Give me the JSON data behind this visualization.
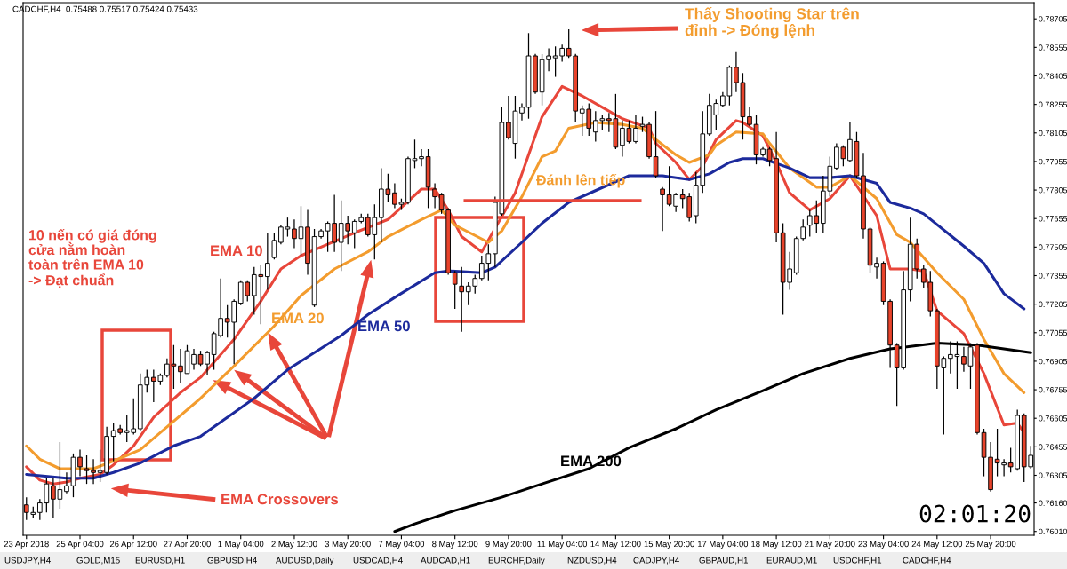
{
  "chart_data": {
    "type": "candlestick",
    "title": "CADCHF,H4  0.75488 0.75517 0.75424 0.75433",
    "categories": [
      "23 Apr 2018",
      null,
      null,
      null,
      null,
      null,
      null,
      null,
      "25 Apr 04:00",
      null,
      null,
      null,
      null,
      null,
      null,
      null,
      "26 Apr 12:00",
      null,
      null,
      null,
      null,
      null,
      null,
      null,
      "27 Apr 20:00",
      null,
      null,
      null,
      null,
      null,
      null,
      null,
      "1 May 04:00",
      null,
      null,
      null,
      null,
      null,
      null,
      null,
      "2 May 12:00",
      null,
      null,
      null,
      null,
      null,
      null,
      null,
      "3 May 20:00",
      null,
      null,
      null,
      null,
      null,
      null,
      null,
      "7 May 04:00",
      null,
      null,
      null,
      null,
      null,
      null,
      null,
      "8 May 12:00",
      null,
      null,
      null,
      null,
      null,
      null,
      null,
      "9 May 20:00",
      null,
      null,
      null,
      null,
      null,
      null,
      null,
      "11 May 04:00",
      null,
      null,
      null,
      null,
      null,
      null,
      null,
      "14 May 12:00",
      null,
      null,
      null,
      null,
      null,
      null,
      null,
      "15 May 20:00",
      null,
      null,
      null,
      null,
      null,
      null,
      null,
      "17 May 04:00",
      null,
      null,
      null,
      null,
      null,
      null,
      null,
      "18 May 12:00",
      null,
      null,
      null,
      null,
      null,
      null,
      null,
      "21 May 20:00",
      null,
      null,
      null,
      null,
      null,
      null,
      null,
      "23 May 04:00",
      null,
      null,
      null,
      null,
      null,
      null,
      null,
      "24 May 12:00",
      null,
      null,
      null,
      null,
      null,
      null,
      null,
      "25 May 20:00",
      null,
      null,
      null,
      null,
      null,
      null
    ],
    "ohlc": [
      [
        0.7615,
        0.7619,
        0.7607,
        0.7611
      ],
      [
        0.761,
        0.7614,
        0.7608,
        0.7611
      ],
      [
        0.7611,
        0.7618,
        0.7607,
        0.7616
      ],
      [
        0.7616,
        0.7629,
        0.7611,
        0.7626
      ],
      [
        0.7625,
        0.7629,
        0.7608,
        0.7618
      ],
      [
        0.7618,
        0.7648,
        0.7613,
        0.7623
      ],
      [
        0.7622,
        0.7632,
        0.7621,
        0.7625
      ],
      [
        0.7625,
        0.7642,
        0.7619,
        0.764
      ],
      [
        0.764,
        0.7644,
        0.763,
        0.7635
      ],
      [
        0.7634,
        0.7641,
        0.7626,
        0.7633
      ],
      [
        0.7633,
        0.7639,
        0.7626,
        0.7632
      ],
      [
        0.7632,
        0.7644,
        0.7627,
        0.7633
      ],
      [
        0.7632,
        0.7656,
        0.7631,
        0.7651
      ],
      [
        0.7651,
        0.7658,
        0.7638,
        0.7654
      ],
      [
        0.7655,
        0.7657,
        0.7652,
        0.7653
      ],
      [
        0.7653,
        0.7662,
        0.7648,
        0.7654
      ],
      [
        0.7653,
        0.7671,
        0.7652,
        0.7655
      ],
      [
        0.7655,
        0.7684,
        0.7654,
        0.7678
      ],
      [
        0.7678,
        0.7686,
        0.7674,
        0.7682
      ],
      [
        0.7682,
        0.7686,
        0.7669,
        0.768
      ],
      [
        0.768,
        0.7684,
        0.7678,
        0.7683
      ],
      [
        0.7683,
        0.7692,
        0.7682,
        0.7689
      ],
      [
        0.7689,
        0.7699,
        0.7676,
        0.7688
      ],
      [
        0.7688,
        0.7697,
        0.7679,
        0.7685
      ],
      [
        0.7684,
        0.7699,
        0.7684,
        0.7696
      ],
      [
        0.7689,
        0.7697,
        0.7686,
        0.7694
      ],
      [
        0.7694,
        0.7696,
        0.7688,
        0.7689
      ],
      [
        0.7689,
        0.7696,
        0.7683,
        0.7695
      ],
      [
        0.7694,
        0.7706,
        0.7686,
        0.7705
      ],
      [
        0.7704,
        0.7734,
        0.7703,
        0.7713
      ],
      [
        0.7713,
        0.772,
        0.7703,
        0.7711
      ],
      [
        0.7711,
        0.7723,
        0.7689,
        0.7722
      ],
      [
        0.7721,
        0.7733,
        0.772,
        0.7732
      ],
      [
        0.7732,
        0.7733,
        0.7722,
        0.7725
      ],
      [
        0.7725,
        0.774,
        0.7715,
        0.7736
      ],
      [
        0.7736,
        0.7741,
        0.771,
        0.7735
      ],
      [
        0.7735,
        0.7758,
        0.7728,
        0.7742
      ],
      [
        0.7745,
        0.7758,
        0.7744,
        0.7754
      ],
      [
        0.7753,
        0.7762,
        0.7752,
        0.7761
      ],
      [
        0.776,
        0.7766,
        0.7756,
        0.7761
      ],
      [
        0.776,
        0.7765,
        0.775,
        0.7755
      ],
      [
        0.7755,
        0.7772,
        0.7746,
        0.7761
      ],
      [
        0.7761,
        0.777,
        0.7736,
        0.7742
      ],
      [
        0.772,
        0.776,
        0.7719,
        0.7756
      ],
      [
        0.7756,
        0.776,
        0.7755,
        0.7759
      ],
      [
        0.7759,
        0.7764,
        0.7748,
        0.7763
      ],
      [
        0.7763,
        0.7778,
        0.7748,
        0.7753
      ],
      [
        0.7753,
        0.7775,
        0.7738,
        0.7763
      ],
      [
        0.7763,
        0.7767,
        0.7752,
        0.7759
      ],
      [
        0.7758,
        0.7765,
        0.775,
        0.7764
      ],
      [
        0.7764,
        0.7768,
        0.7763,
        0.7766
      ],
      [
        0.7766,
        0.7768,
        0.7756,
        0.7757
      ],
      [
        0.7757,
        0.7773,
        0.7744,
        0.7766
      ],
      [
        0.7766,
        0.7792,
        0.7753,
        0.7781
      ],
      [
        0.7781,
        0.7789,
        0.7774,
        0.7778
      ],
      [
        0.7779,
        0.7784,
        0.7771,
        0.7773
      ],
      [
        0.7773,
        0.7776,
        0.777,
        0.7774
      ],
      [
        0.7774,
        0.7798,
        0.7773,
        0.7797
      ],
      [
        0.7796,
        0.7807,
        0.7792,
        0.7797
      ],
      [
        0.7797,
        0.7802,
        0.7793,
        0.7798
      ],
      [
        0.7798,
        0.7802,
        0.7771,
        0.7782
      ],
      [
        0.7781,
        0.7784,
        0.7771,
        0.7777
      ],
      [
        0.7778,
        0.7779,
        0.7768,
        0.777
      ],
      [
        0.777,
        0.7771,
        0.7736,
        0.7737
      ],
      [
        0.7737,
        0.7738,
        0.7718,
        0.7731
      ],
      [
        0.773,
        0.774,
        0.7706,
        0.7727
      ],
      [
        0.7727,
        0.7732,
        0.772,
        0.773
      ],
      [
        0.773,
        0.7736,
        0.7726,
        0.7734
      ],
      [
        0.7734,
        0.7746,
        0.7733,
        0.7742
      ],
      [
        0.7742,
        0.7752,
        0.7733,
        0.7747
      ],
      [
        0.7747,
        0.7777,
        0.774,
        0.7774
      ],
      [
        0.7768,
        0.7824,
        0.7767,
        0.7816
      ],
      [
        0.7816,
        0.783,
        0.7807,
        0.7808
      ],
      [
        0.7805,
        0.783,
        0.7797,
        0.7822
      ],
      [
        0.7821,
        0.7826,
        0.7817,
        0.7824
      ],
      [
        0.7824,
        0.7863,
        0.7818,
        0.7851
      ],
      [
        0.7851,
        0.7852,
        0.7831,
        0.7832
      ],
      [
        0.7832,
        0.7852,
        0.7825,
        0.7849
      ],
      [
        0.7849,
        0.7855,
        0.7843,
        0.7851
      ],
      [
        0.785,
        0.7856,
        0.784,
        0.7851
      ],
      [
        0.7851,
        0.7857,
        0.7848,
        0.7855
      ],
      [
        0.7855,
        0.7865,
        0.785,
        0.7851
      ],
      [
        0.7851,
        0.7852,
        0.7816,
        0.7822
      ],
      [
        0.7821,
        0.7825,
        0.7809,
        0.7823
      ],
      [
        0.7823,
        0.7826,
        0.7809,
        0.7813
      ],
      [
        0.7811,
        0.7822,
        0.7806,
        0.7817
      ],
      [
        0.7817,
        0.782,
        0.7812,
        0.7818
      ],
      [
        0.7818,
        0.7821,
        0.7811,
        0.7817
      ],
      [
        0.7818,
        0.7831,
        0.7802,
        0.7803
      ],
      [
        0.7804,
        0.7817,
        0.7798,
        0.7813
      ],
      [
        0.7813,
        0.7817,
        0.7805,
        0.7806
      ],
      [
        0.7806,
        0.782,
        0.7805,
        0.7813
      ],
      [
        0.7814,
        0.7819,
        0.7811,
        0.7815
      ],
      [
        0.7815,
        0.7816,
        0.7797,
        0.7798
      ],
      [
        0.7798,
        0.7822,
        0.7787,
        0.7788
      ],
      [
        0.7781,
        0.7782,
        0.7759,
        0.7778
      ],
      [
        0.7778,
        0.7793,
        0.7772,
        0.7773
      ],
      [
        0.7772,
        0.7779,
        0.7769,
        0.7778
      ],
      [
        0.7778,
        0.7781,
        0.7771,
        0.7776
      ],
      [
        0.7777,
        0.7779,
        0.7764,
        0.7766
      ],
      [
        0.7767,
        0.779,
        0.7763,
        0.7783
      ],
      [
        0.7783,
        0.7822,
        0.7779,
        0.781
      ],
      [
        0.781,
        0.7831,
        0.7809,
        0.7825
      ],
      [
        0.782,
        0.7828,
        0.7812,
        0.7826
      ],
      [
        0.7825,
        0.7832,
        0.7824,
        0.783
      ],
      [
        0.783,
        0.7846,
        0.7825,
        0.7845
      ],
      [
        0.7845,
        0.7853,
        0.7832,
        0.7837
      ],
      [
        0.7837,
        0.7842,
        0.7807,
        0.7819
      ],
      [
        0.7819,
        0.7824,
        0.7814,
        0.7815
      ],
      [
        0.7815,
        0.782,
        0.7794,
        0.7799
      ],
      [
        0.7799,
        0.7803,
        0.7798,
        0.7802
      ],
      [
        0.7802,
        0.7803,
        0.7793,
        0.7796
      ],
      [
        0.7797,
        0.7811,
        0.7753,
        0.7758
      ],
      [
        0.7758,
        0.7763,
        0.7715,
        0.7732
      ],
      [
        0.7732,
        0.7748,
        0.7728,
        0.7739
      ],
      [
        0.7737,
        0.7756,
        0.7736,
        0.7755
      ],
      [
        0.7755,
        0.7765,
        0.7754,
        0.7761
      ],
      [
        0.7762,
        0.777,
        0.7756,
        0.7767
      ],
      [
        0.7767,
        0.7775,
        0.7758,
        0.7763
      ],
      [
        0.7763,
        0.7788,
        0.7758,
        0.778
      ],
      [
        0.778,
        0.7798,
        0.7777,
        0.7793
      ],
      [
        0.7792,
        0.7805,
        0.7791,
        0.7803
      ],
      [
        0.7803,
        0.7804,
        0.7793,
        0.7797
      ],
      [
        0.7796,
        0.7816,
        0.7795,
        0.7807
      ],
      [
        0.7806,
        0.7811,
        0.7787,
        0.7788
      ],
      [
        0.7788,
        0.78,
        0.7755,
        0.776
      ],
      [
        0.776,
        0.7761,
        0.7737,
        0.7741
      ],
      [
        0.774,
        0.7745,
        0.7734,
        0.7742
      ],
      [
        0.7742,
        0.7743,
        0.772,
        0.7722
      ],
      [
        0.7722,
        0.7723,
        0.7687,
        0.7699
      ],
      [
        0.7699,
        0.77,
        0.7667,
        0.7687
      ],
      [
        0.7687,
        0.7738,
        0.7686,
        0.7728
      ],
      [
        0.7728,
        0.7766,
        0.7722,
        0.7752
      ],
      [
        0.7752,
        0.7755,
        0.7734,
        0.7739
      ],
      [
        0.7739,
        0.7741,
        0.7729,
        0.7732
      ],
      [
        0.7732,
        0.7738,
        0.7714,
        0.7717
      ],
      [
        0.7717,
        0.7718,
        0.7676,
        0.7688
      ],
      [
        0.7687,
        0.7693,
        0.7652,
        0.7692
      ],
      [
        0.7692,
        0.7701,
        0.7684,
        0.7694
      ],
      [
        0.7693,
        0.7701,
        0.7676,
        0.7694
      ],
      [
        0.7693,
        0.7698,
        0.7685,
        0.7689
      ],
      [
        0.7688,
        0.77,
        0.7676,
        0.7698
      ],
      [
        0.7699,
        0.77,
        0.7652,
        0.7653
      ],
      [
        0.7653,
        0.7655,
        0.763,
        0.764
      ],
      [
        0.764,
        0.7648,
        0.7622,
        0.7623
      ],
      [
        0.7639,
        0.7655,
        0.763,
        0.7637
      ],
      [
        0.7636,
        0.7639,
        0.763,
        0.7637
      ],
      [
        0.7637,
        0.7645,
        0.7632,
        0.7635
      ],
      [
        0.7634,
        0.7665,
        0.7633,
        0.7662
      ],
      [
        0.7662,
        0.7663,
        0.7627,
        0.7635
      ],
      [
        0.7635,
        0.7646,
        0.7634,
        0.7641
      ]
    ],
    "colors": [
      "#e8432b",
      "#ffffff",
      "#ffffff",
      "#ffffff",
      "#e8432b",
      "#ffffff",
      "#ffffff",
      "#ffffff",
      "#e8432b",
      "#e8432b",
      "#e8432b",
      "#ffffff",
      "#ffffff",
      "#ffffff",
      "#e8432b",
      "#ffffff",
      "#ffffff",
      "#ffffff",
      "#ffffff",
      "#e8432b",
      "#ffffff",
      "#ffffff",
      "#e8432b",
      "#e8432b",
      "#ffffff",
      "#ffffff",
      "#e8432b",
      "#ffffff",
      "#ffffff",
      "#ffffff",
      "#e8432b",
      "#ffffff",
      "#ffffff",
      "#e8432b",
      "#ffffff",
      "#e8432b",
      "#ffffff",
      "#ffffff",
      "#ffffff",
      "#ffffff",
      "#e8432b",
      "#ffffff",
      "#e8432b",
      "#ffffff",
      "#ffffff",
      "#ffffff",
      "#e8432b",
      "#ffffff",
      "#e8432b",
      "#ffffff",
      "#ffffff",
      "#e8432b",
      "#ffffff",
      "#ffffff",
      "#e8432b",
      "#e8432b",
      "#ffffff",
      "#ffffff",
      "#ffffff",
      "#ffffff",
      "#e8432b",
      "#e8432b",
      "#e8432b",
      "#e8432b",
      "#e8432b",
      "#e8432b",
      "#ffffff",
      "#ffffff",
      "#ffffff",
      "#ffffff",
      "#ffffff",
      "#ffffff",
      "#e8432b",
      "#ffffff",
      "#ffffff",
      "#ffffff",
      "#e8432b",
      "#ffffff",
      "#ffffff",
      "#ffffff",
      "#ffffff",
      "#e8432b",
      "#e8432b",
      "#ffffff",
      "#e8432b",
      "#ffffff",
      "#ffffff",
      "#e8432b",
      "#e8432b",
      "#ffffff",
      "#e8432b",
      "#ffffff",
      "#ffffff",
      "#e8432b",
      "#e8432b",
      "#e8432b",
      "#e8432b",
      "#ffffff",
      "#e8432b",
      "#e8432b",
      "#ffffff",
      "#ffffff",
      "#ffffff",
      "#ffffff",
      "#ffffff",
      "#ffffff",
      "#e8432b",
      "#e8432b",
      "#e8432b",
      "#e8432b",
      "#ffffff",
      "#e8432b",
      "#e8432b",
      "#e8432b",
      "#ffffff",
      "#ffffff",
      "#ffffff",
      "#ffffff",
      "#e8432b",
      "#ffffff",
      "#ffffff",
      "#ffffff",
      "#e8432b",
      "#ffffff",
      "#e8432b",
      "#e8432b",
      "#e8432b",
      "#ffffff",
      "#e8432b",
      "#e8432b",
      "#e8432b",
      "#ffffff",
      "#ffffff",
      "#e8432b",
      "#e8432b",
      "#e8432b",
      "#e8432b",
      "#ffffff",
      "#ffffff",
      "#ffffff",
      "#e8432b",
      "#ffffff",
      "#e8432b",
      "#e8432b",
      "#e8432b",
      "#e8432b",
      "#ffffff",
      "#e8432b",
      "#ffffff",
      "#e8432b",
      "#ffffff"
    ],
    "series": [
      {
        "name": "EMA 10",
        "type": "line",
        "color": "#e8463a",
        "values": [
          0.7635,
          null,
          0.7628,
          null,
          0.7626,
          null,
          0.7627,
          null,
          0.7629,
          null,
          null,
          0.7631,
          null,
          0.7636,
          null,
          null,
          0.7646,
          null,
          null,
          0.7661,
          null,
          null,
          null,
          0.7674,
          null,
          null,
          0.7682,
          null,
          null,
          null,
          null,
          0.7702,
          null,
          null,
          null,
          0.7722,
          null,
          null,
          0.7739,
          null,
          null,
          0.7746,
          null,
          null,
          null,
          0.7752,
          null,
          null,
          null,
          0.7758,
          null,
          null,
          null,
          null,
          0.7765,
          null,
          null,
          null,
          null,
          0.7781,
          null,
          0.7781,
          null,
          0.777,
          null,
          0.7756,
          null,
          null,
          0.7748,
          null,
          null,
          null,
          null,
          0.7779,
          null,
          null,
          null,
          0.7819,
          null,
          null,
          0.7835,
          null,
          null,
          0.783,
          null,
          null,
          0.7824,
          null,
          null,
          0.7818,
          null,
          null,
          null,
          0.7813,
          0.7805,
          null,
          null,
          0.7795,
          null,
          0.7786,
          null,
          0.7793,
          null,
          0.7807,
          null,
          null,
          0.7817,
          0.7816,
          null,
          null,
          0.7809,
          null,
          0.7795,
          null,
          0.7779,
          null,
          null,
          0.777,
          null,
          null,
          0.7776,
          null,
          null,
          0.7788,
          null,
          null,
          null,
          0.7767,
          null,
          0.7739,
          null,
          null,
          0.7739,
          null,
          0.7738,
          null,
          0.7717,
          null,
          null,
          null,
          0.7705,
          null,
          null,
          0.7684,
          null,
          null,
          0.7657,
          null,
          0.7658,
          0.7653,
          null
        ]
      },
      {
        "name": "EMA 20",
        "type": "line",
        "color": "#f39c2e",
        "values": [
          0.7646,
          null,
          0.7639,
          null,
          null,
          0.7634,
          null,
          null,
          null,
          null,
          0.7634,
          null,
          null,
          0.7638,
          null,
          0.7641,
          null,
          0.7644,
          null,
          null,
          null,
          0.7656,
          null,
          null,
          null,
          null,
          0.7671,
          null,
          null,
          null,
          null,
          0.7688,
          null,
          null,
          null,
          null,
          null,
          0.7709,
          null,
          null,
          null,
          0.7725,
          null,
          null,
          null,
          null,
          0.7739,
          null,
          null,
          null,
          null,
          0.7748,
          null,
          null,
          0.7756,
          null,
          null,
          null,
          null,
          0.7765,
          null,
          null,
          0.777,
          null,
          0.7762,
          null,
          null,
          null,
          null,
          0.7753,
          null,
          0.7759,
          null,
          null,
          0.7777,
          null,
          null,
          0.7798,
          null,
          0.7801,
          null,
          0.7813,
          null,
          null,
          null,
          0.7816,
          null,
          null,
          null,
          0.7815,
          null,
          null,
          0.7813,
          null,
          0.7807,
          null,
          null,
          0.7799,
          null,
          0.7795,
          null,
          null,
          0.7799,
          0.7804,
          null,
          null,
          0.7811,
          null,
          null,
          null,
          0.781,
          0.7805,
          null,
          null,
          0.7792,
          null,
          null,
          null,
          0.7782,
          null,
          0.7782,
          null,
          null,
          0.7788,
          null,
          null,
          null,
          0.7776,
          null,
          null,
          0.7757,
          null,
          0.7753,
          null,
          null,
          null,
          0.7737,
          null,
          null,
          null,
          0.7723,
          null,
          null,
          0.7702,
          null,
          null,
          0.7684,
          null,
          null,
          0.7674,
          null
        ]
      },
      {
        "name": "EMA 50",
        "type": "line",
        "color": "#1c2a9c",
        "values": [
          0.7631,
          null,
          null,
          null,
          null,
          null,
          0.7629,
          null,
          null,
          null,
          0.7629,
          null,
          null,
          0.7632,
          null,
          null,
          null,
          0.7637,
          null,
          null,
          null,
          null,
          0.7646,
          null,
          null,
          null,
          0.7651,
          null,
          null,
          null,
          null,
          null,
          null,
          null,
          0.7671,
          null,
          null,
          null,
          null,
          0.7686,
          null,
          null,
          null,
          null,
          null,
          null,
          null,
          0.7704,
          null,
          null,
          null,
          0.7715,
          null,
          null,
          null,
          0.7724,
          null,
          null,
          null,
          null,
          null,
          0.7737,
          null,
          0.7738,
          null,
          null,
          null,
          null,
          0.7737,
          null,
          0.774,
          null,
          null,
          null,
          0.7753,
          null,
          null,
          0.7763,
          null,
          null,
          null,
          0.7774,
          null,
          null,
          null,
          null,
          null,
          null,
          null,
          null,
          0.7788,
          null,
          null,
          0.7788,
          null,
          0.7788,
          null,
          null,
          null,
          0.7786,
          null,
          null,
          0.7789,
          null,
          null,
          0.7795,
          null,
          0.7797,
          null,
          null,
          0.7797,
          null,
          null,
          null,
          0.7792,
          null,
          null,
          0.7787,
          null,
          null,
          0.7787,
          null,
          null,
          0.7788,
          null,
          null,
          null,
          0.7784,
          null,
          0.7774,
          null,
          null,
          0.7771,
          null,
          0.7768,
          null,
          null,
          null,
          null,
          null,
          0.7751,
          null,
          null,
          0.7742,
          null,
          null,
          0.7726,
          null,
          null,
          0.7718,
          null
        ]
      },
      {
        "name": "EMA 200",
        "type": "line",
        "color": "#000000",
        "values": [
          null,
          null,
          null,
          null,
          null,
          null,
          null,
          null,
          null,
          null,
          null,
          null,
          null,
          null,
          null,
          null,
          null,
          null,
          null,
          null,
          null,
          null,
          null,
          null,
          null,
          null,
          null,
          null,
          null,
          null,
          null,
          null,
          null,
          null,
          null,
          null,
          null,
          null,
          null,
          null,
          null,
          null,
          null,
          null,
          null,
          null,
          null,
          null,
          null,
          null,
          null,
          null,
          null,
          null,
          null,
          0.7601,
          null,
          null,
          0.7605,
          null,
          null,
          null,
          null,
          null,
          0.7612,
          null,
          null,
          null,
          null,
          null,
          null,
          0.7619,
          null,
          null,
          null,
          null,
          null,
          0.7626,
          null,
          null,
          null,
          null,
          null,
          null,
          0.7634,
          null,
          null,
          null,
          null,
          null,
          0.7645,
          null,
          null,
          null,
          null,
          null,
          null,
          0.7655,
          null,
          null,
          null,
          null,
          null,
          0.7665,
          null,
          null,
          null,
          null,
          null,
          null,
          0.7675,
          null,
          null,
          null,
          null,
          null,
          0.7684,
          null,
          null,
          null,
          null,
          null,
          null,
          0.7692,
          null,
          null,
          null,
          null,
          null,
          0.7697,
          null,
          null,
          null,
          null,
          null,
          null,
          0.77,
          null,
          null,
          null,
          null,
          null,
          0.7699,
          null,
          null,
          null,
          null,
          null,
          null,
          null,
          0.7695
        ]
      }
    ],
    "ref_lines": [
      {
        "axis": "y",
        "value": 0.7775,
        "color": "#e8463a"
      }
    ],
    "ylim": [
      0.7599,
      0.7879
    ],
    "yticks": [
      {
        "value": 0.78705,
        "label": "0.78705"
      },
      {
        "value": 0.78555,
        "label": "0.78555"
      },
      {
        "value": 0.78405,
        "label": "0.78405"
      },
      {
        "value": 0.78255,
        "label": "0.78255"
      },
      {
        "value": 0.78105,
        "label": "0.78105"
      },
      {
        "value": 0.77955,
        "label": "0.77955"
      },
      {
        "value": 0.77805,
        "label": "0.77805"
      },
      {
        "value": 0.77655,
        "label": "0.77655"
      },
      {
        "value": 0.77505,
        "label": "0.77505"
      },
      {
        "value": 0.77355,
        "label": "0.77355"
      },
      {
        "value": 0.77205,
        "label": "0.77205"
      },
      {
        "value": 0.77055,
        "label": "0.77055"
      },
      {
        "value": 0.76905,
        "label": "0.76905"
      },
      {
        "value": 0.76755,
        "label": "0.76755"
      },
      {
        "value": 0.76605,
        "label": "0.76605"
      },
      {
        "value": 0.76455,
        "label": "0.76455"
      },
      {
        "value": 0.76305,
        "label": "0.76305"
      },
      {
        "value": 0.7616,
        "label": "0.76160"
      },
      {
        "value": 0.7601,
        "label": "0.76010"
      }
    ],
    "annotations": [
      "Thấy Shooting Star trên\nđỉnh -> Đóng lệnh",
      "Đánh lên tiếp",
      "10 nến có giá đóng\ncửa nằm hoàn\ntoàn trên EMA 10\n-> Đạt chuẩn",
      "EMA Crossovers",
      "02:01:20",
      "USDJPY,H4",
      "GOLD,M15",
      "EURUSD,H1",
      "GBPUSD,H4",
      "AUDUSD,Daily",
      "USDCAD,H4",
      "AUDCAD,H1",
      "EURCHF,Daily",
      "NZDUSD,H4",
      "CADJPY,H4",
      "GBPAUD,H1",
      "EURAUD,M1",
      "USDCHF,H1",
      "CADCHF,H4"
    ]
  }
}
